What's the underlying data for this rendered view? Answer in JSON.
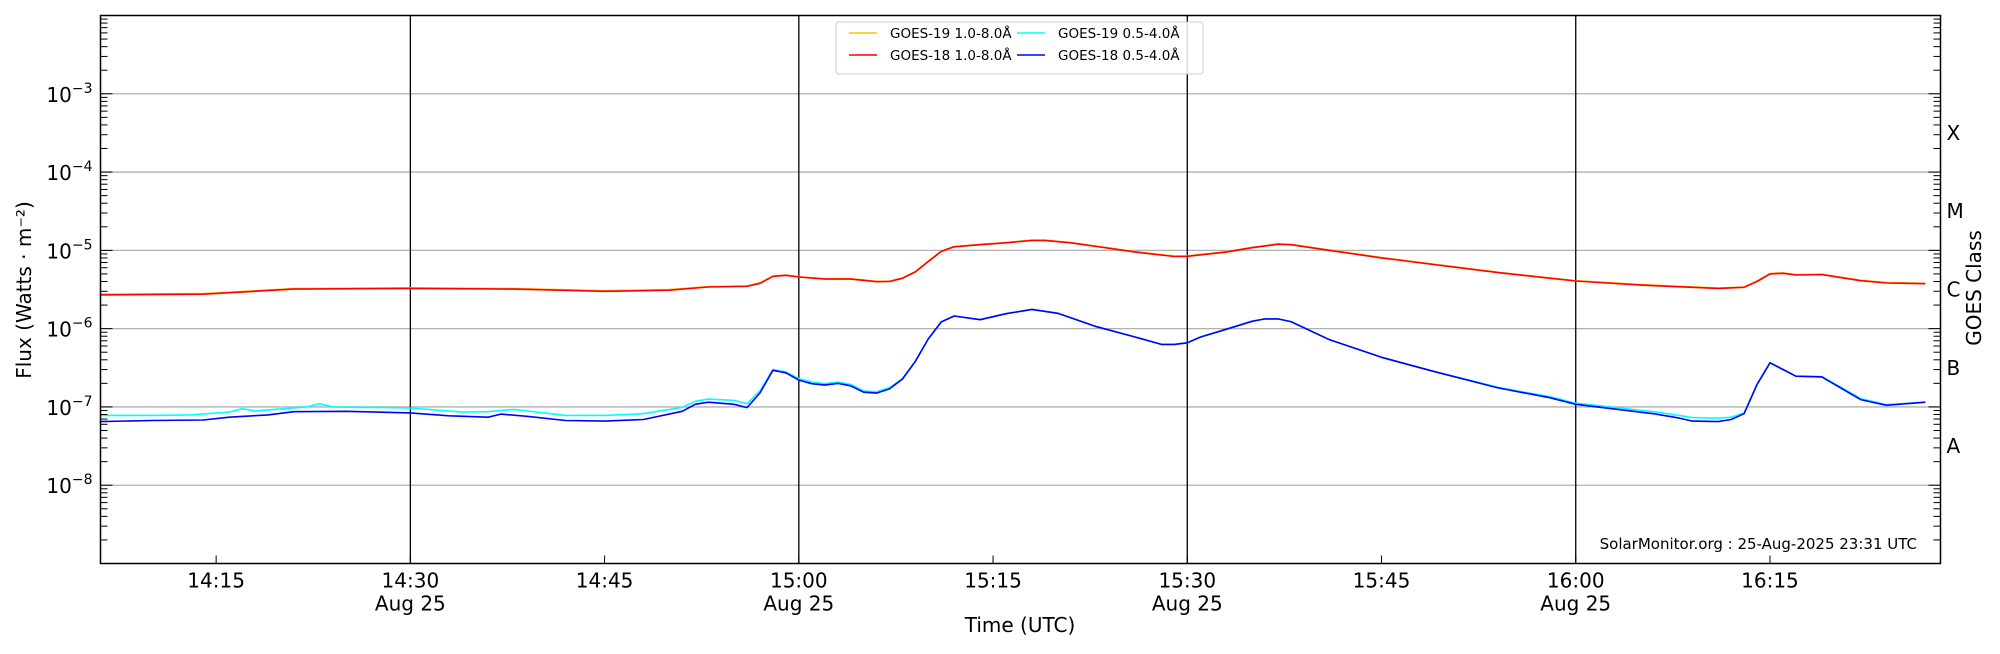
{
  "chart_data": {
    "type": "line",
    "title": "",
    "xlabel": "Time (UTC)",
    "ylabel": "Flux (Watts · m⁻²)",
    "right_ylabel": "GOES Class",
    "xlim": [
      "14:06",
      "16:28"
    ],
    "ylim": [
      1e-09,
      0.01
    ],
    "yscale": "log",
    "grid": "horizontal at decades",
    "legend_placement": "top-center",
    "x_ticks": [
      {
        "time": "14:15",
        "label": "14:15",
        "sublabel": ""
      },
      {
        "time": "14:30",
        "label": "14:30",
        "sublabel": "Aug 25"
      },
      {
        "time": "14:45",
        "label": "14:45",
        "sublabel": ""
      },
      {
        "time": "15:00",
        "label": "15:00",
        "sublabel": "Aug 25"
      },
      {
        "time": "15:15",
        "label": "15:15",
        "sublabel": ""
      },
      {
        "time": "15:30",
        "label": "15:30",
        "sublabel": "Aug 25"
      },
      {
        "time": "15:45",
        "label": "15:45",
        "sublabel": ""
      },
      {
        "time": "16:00",
        "label": "16:00",
        "sublabel": "Aug 25"
      },
      {
        "time": "16:15",
        "label": "16:15",
        "sublabel": ""
      }
    ],
    "day_lines": [
      "14:30",
      "15:00",
      "15:30",
      "16:00"
    ],
    "y_ticks": [
      {
        "value": 1e-08,
        "base": "10",
        "exp": "−8"
      },
      {
        "value": 1e-07,
        "base": "10",
        "exp": "−7"
      },
      {
        "value": 1e-06,
        "base": "10",
        "exp": "−6"
      },
      {
        "value": 1e-05,
        "base": "10",
        "exp": "−5"
      },
      {
        "value": 0.0001,
        "base": "10",
        "exp": "−4"
      },
      {
        "value": 0.001,
        "base": "10",
        "exp": "−3"
      }
    ],
    "goes_classes": [
      {
        "label": "A",
        "value": 3.16e-08
      },
      {
        "label": "B",
        "value": 3.16e-07
      },
      {
        "label": "C",
        "value": 3.16e-06
      },
      {
        "label": "M",
        "value": 3.16e-05
      },
      {
        "label": "X",
        "value": 0.000316
      }
    ],
    "watermark": "SolarMonitor.org : 25-Aug-2025 23:31 UTC",
    "series": [
      {
        "name": "GOES-19 1.0-8.0Å",
        "color": "#ffc000",
        "points": [
          [
            "14:06",
            2.75e-06
          ],
          [
            "14:14",
            2.8e-06
          ],
          [
            "14:21",
            3.25e-06
          ],
          [
            "14:30",
            3.32e-06
          ],
          [
            "14:38",
            3.25e-06
          ],
          [
            "14:45",
            3.05e-06
          ],
          [
            "14:50",
            3.15e-06
          ],
          [
            "14:53",
            3.45e-06
          ],
          [
            "14:56",
            3.5e-06
          ],
          [
            "14:57",
            3.85e-06
          ],
          [
            "14:58",
            4.7e-06
          ],
          [
            "14:59",
            4.85e-06
          ],
          [
            "15:00",
            4.6e-06
          ],
          [
            "15:02",
            4.35e-06
          ],
          [
            "15:04",
            4.35e-06
          ],
          [
            "15:06",
            4.02e-06
          ],
          [
            "15:07",
            4.05e-06
          ],
          [
            "15:08",
            4.45e-06
          ],
          [
            "15:09",
            5.35e-06
          ],
          [
            "15:10",
            7.3e-06
          ],
          [
            "15:11",
            9.8e-06
          ],
          [
            "15:12",
            1.12e-05
          ],
          [
            "15:14",
            1.19e-05
          ],
          [
            "15:16",
            1.26e-05
          ],
          [
            "15:18",
            1.35e-05
          ],
          [
            "15:19",
            1.35e-05
          ],
          [
            "15:21",
            1.26e-05
          ],
          [
            "15:23",
            1.13e-05
          ],
          [
            "15:26",
            9.6e-06
          ],
          [
            "15:29",
            8.45e-06
          ],
          [
            "15:30",
            8.5e-06
          ],
          [
            "15:33",
            9.6e-06
          ],
          [
            "15:35",
            1.09e-05
          ],
          [
            "15:37",
            1.21e-05
          ],
          [
            "15:38",
            1.19e-05
          ],
          [
            "15:41",
            1.01e-05
          ],
          [
            "15:45",
            8.1e-06
          ],
          [
            "15:49",
            6.7e-06
          ],
          [
            "15:54",
            5.25e-06
          ],
          [
            "16:00",
            4.1e-06
          ],
          [
            "16:05",
            3.65e-06
          ],
          [
            "16:11",
            3.3e-06
          ],
          [
            "16:13",
            3.4e-06
          ],
          [
            "16:14",
            4.05e-06
          ],
          [
            "16:15",
            5.05e-06
          ],
          [
            "16:16",
            5.15e-06
          ],
          [
            "16:17",
            4.9e-06
          ],
          [
            "16:19",
            4.95e-06
          ],
          [
            "16:22",
            4.15e-06
          ],
          [
            "16:24",
            3.87e-06
          ],
          [
            "16:27",
            3.8e-06
          ]
        ]
      },
      {
        "name": "GOES-18 1.0-8.0Å",
        "color": "#ff0000",
        "points": [
          [
            "14:06",
            2.7e-06
          ],
          [
            "14:14",
            2.75e-06
          ],
          [
            "14:21",
            3.2e-06
          ],
          [
            "14:30",
            3.27e-06
          ],
          [
            "14:38",
            3.2e-06
          ],
          [
            "14:45",
            3e-06
          ],
          [
            "14:50",
            3.1e-06
          ],
          [
            "14:53",
            3.4e-06
          ],
          [
            "14:56",
            3.47e-06
          ],
          [
            "14:57",
            3.8e-06
          ],
          [
            "14:58",
            4.65e-06
          ],
          [
            "14:59",
            4.8e-06
          ],
          [
            "15:00",
            4.57e-06
          ],
          [
            "15:02",
            4.3e-06
          ],
          [
            "15:04",
            4.3e-06
          ],
          [
            "15:06",
            3.98e-06
          ],
          [
            "15:07",
            4e-06
          ],
          [
            "15:08",
            4.4e-06
          ],
          [
            "15:09",
            5.3e-06
          ],
          [
            "15:10",
            7.2e-06
          ],
          [
            "15:11",
            9.7e-06
          ],
          [
            "15:12",
            1.11e-05
          ],
          [
            "15:14",
            1.18e-05
          ],
          [
            "15:16",
            1.25e-05
          ],
          [
            "15:18",
            1.34e-05
          ],
          [
            "15:19",
            1.34e-05
          ],
          [
            "15:21",
            1.25e-05
          ],
          [
            "15:23",
            1.12e-05
          ],
          [
            "15:26",
            9.5e-06
          ],
          [
            "15:29",
            8.35e-06
          ],
          [
            "15:30",
            8.4e-06
          ],
          [
            "15:33",
            9.5e-06
          ],
          [
            "15:35",
            1.08e-05
          ],
          [
            "15:37",
            1.2e-05
          ],
          [
            "15:38",
            1.18e-05
          ],
          [
            "15:41",
            1e-05
          ],
          [
            "15:45",
            8e-06
          ],
          [
            "15:49",
            6.6e-06
          ],
          [
            "15:54",
            5.2e-06
          ],
          [
            "16:00",
            4.06e-06
          ],
          [
            "16:05",
            3.6e-06
          ],
          [
            "16:11",
            3.27e-06
          ],
          [
            "16:13",
            3.37e-06
          ],
          [
            "16:14",
            4e-06
          ],
          [
            "16:15",
            5e-06
          ],
          [
            "16:16",
            5.1e-06
          ],
          [
            "16:17",
            4.84e-06
          ],
          [
            "16:19",
            4.9e-06
          ],
          [
            "16:22",
            4.1e-06
          ],
          [
            "16:24",
            3.83e-06
          ],
          [
            "16:27",
            3.75e-06
          ]
        ]
      },
      {
        "name": "GOES-19 0.5-4.0Å",
        "color": "#00ffff",
        "points": [
          [
            "14:06",
            7.8e-08
          ],
          [
            "14:10",
            7.8e-08
          ],
          [
            "14:13",
            7.9e-08
          ],
          [
            "14:16",
            8.6e-08
          ],
          [
            "14:17",
            9.5e-08
          ],
          [
            "14:18",
            8.9e-08
          ],
          [
            "14:22",
            1e-07
          ],
          [
            "14:23",
            1.1e-07
          ],
          [
            "14:24",
            1e-07
          ],
          [
            "14:28",
            9.8e-08
          ],
          [
            "14:30",
            9.7e-08
          ],
          [
            "14:34",
            8.6e-08
          ],
          [
            "14:36",
            8.7e-08
          ],
          [
            "14:38",
            9.3e-08
          ],
          [
            "14:42",
            7.8e-08
          ],
          [
            "14:45",
            7.8e-08
          ],
          [
            "14:48",
            8.2e-08
          ],
          [
            "14:51",
            9.9e-08
          ],
          [
            "14:52",
            1.18e-07
          ],
          [
            "14:53",
            1.26e-07
          ],
          [
            "14:55",
            1.21e-07
          ],
          [
            "14:56",
            1.1e-07
          ],
          [
            "14:57",
            1.6e-07
          ],
          [
            "14:58",
            3e-07
          ],
          [
            "14:59",
            2.8e-07
          ],
          [
            "15:00",
            2.3e-07
          ],
          [
            "15:01",
            2.08e-07
          ],
          [
            "15:02",
            1.98e-07
          ],
          [
            "15:03",
            2.08e-07
          ],
          [
            "15:04",
            1.94e-07
          ],
          [
            "15:05",
            1.6e-07
          ],
          [
            "15:06",
            1.56e-07
          ],
          [
            "15:07",
            1.76e-07
          ],
          [
            "15:08",
            2.3e-07
          ],
          [
            "15:09",
            3.85e-07
          ],
          [
            "15:10",
            7.4e-07
          ],
          [
            "15:11",
            1.22e-06
          ],
          [
            "15:12",
            1.45e-06
          ],
          [
            "15:14",
            1.3e-06
          ],
          [
            "15:16",
            1.55e-06
          ],
          [
            "15:18",
            1.76e-06
          ],
          [
            "15:20",
            1.57e-06
          ],
          [
            "15:23",
            1.06e-06
          ],
          [
            "15:26",
            7.8e-07
          ],
          [
            "15:28",
            6.3e-07
          ],
          [
            "15:29",
            6.3e-07
          ],
          [
            "15:30",
            6.6e-07
          ],
          [
            "15:31",
            7.8e-07
          ],
          [
            "15:33",
            9.8e-07
          ],
          [
            "15:35",
            1.24e-06
          ],
          [
            "15:36",
            1.33e-06
          ],
          [
            "15:37",
            1.33e-06
          ],
          [
            "15:38",
            1.23e-06
          ],
          [
            "15:41",
            7.2e-07
          ],
          [
            "15:45",
            4.3e-07
          ],
          [
            "15:49",
            2.85e-07
          ],
          [
            "15:54",
            1.78e-07
          ],
          [
            "15:58",
            1.35e-07
          ],
          [
            "16:00",
            1.12e-07
          ],
          [
            "16:06",
            8.7e-08
          ],
          [
            "16:08",
            7.8e-08
          ],
          [
            "16:09",
            7.3e-08
          ],
          [
            "16:11",
            7.2e-08
          ],
          [
            "16:12",
            7.4e-08
          ],
          [
            "16:13",
            8.4e-08
          ],
          [
            "16:14",
            1.95e-07
          ],
          [
            "16:15",
            3.66e-07
          ],
          [
            "16:17",
            2.47e-07
          ],
          [
            "16:19",
            2.45e-07
          ],
          [
            "16:22",
            1.28e-07
          ],
          [
            "16:24",
            1.07e-07
          ],
          [
            "16:27",
            1.15e-07
          ]
        ]
      },
      {
        "name": "GOES-18 0.5-4.0Å",
        "color": "#0000ff",
        "points": [
          [
            "14:06",
            6.5e-08
          ],
          [
            "14:10",
            6.7e-08
          ],
          [
            "14:14",
            6.8e-08
          ],
          [
            "14:16",
            7.4e-08
          ],
          [
            "14:19",
            7.9e-08
          ],
          [
            "14:21",
            8.7e-08
          ],
          [
            "14:25",
            8.8e-08
          ],
          [
            "14:30",
            8.4e-08
          ],
          [
            "14:33",
            7.7e-08
          ],
          [
            "14:36",
            7.4e-08
          ],
          [
            "14:37",
            8.1e-08
          ],
          [
            "14:39",
            7.6e-08
          ],
          [
            "14:42",
            6.7e-08
          ],
          [
            "14:45",
            6.6e-08
          ],
          [
            "14:48",
            6.9e-08
          ],
          [
            "14:51",
            8.8e-08
          ],
          [
            "14:52",
            1.08e-07
          ],
          [
            "14:53",
            1.15e-07
          ],
          [
            "14:55",
            1.08e-07
          ],
          [
            "14:56",
            9.8e-08
          ],
          [
            "14:57",
            1.51e-07
          ],
          [
            "14:58",
            2.94e-07
          ],
          [
            "14:59",
            2.73e-07
          ],
          [
            "15:00",
            2.2e-07
          ],
          [
            "15:01",
            1.98e-07
          ],
          [
            "15:02",
            1.9e-07
          ],
          [
            "15:03",
            2e-07
          ],
          [
            "15:04",
            1.86e-07
          ],
          [
            "15:05",
            1.54e-07
          ],
          [
            "15:06",
            1.5e-07
          ],
          [
            "15:07",
            1.7e-07
          ],
          [
            "15:08",
            2.27e-07
          ],
          [
            "15:09",
            3.83e-07
          ],
          [
            "15:10",
            7.4e-07
          ],
          [
            "15:11",
            1.22e-06
          ],
          [
            "15:12",
            1.45e-06
          ],
          [
            "15:14",
            1.3e-06
          ],
          [
            "15:16",
            1.55e-06
          ],
          [
            "15:18",
            1.76e-06
          ],
          [
            "15:20",
            1.57e-06
          ],
          [
            "15:23",
            1.06e-06
          ],
          [
            "15:26",
            7.8e-07
          ],
          [
            "15:28",
            6.3e-07
          ],
          [
            "15:29",
            6.3e-07
          ],
          [
            "15:30",
            6.6e-07
          ],
          [
            "15:31",
            7.8e-07
          ],
          [
            "15:33",
            9.8e-07
          ],
          [
            "15:35",
            1.24e-06
          ],
          [
            "15:36",
            1.33e-06
          ],
          [
            "15:37",
            1.33e-06
          ],
          [
            "15:38",
            1.23e-06
          ],
          [
            "15:41",
            7.2e-07
          ],
          [
            "15:45",
            4.3e-07
          ],
          [
            "15:49",
            2.85e-07
          ],
          [
            "15:54",
            1.75e-07
          ],
          [
            "15:58",
            1.31e-07
          ],
          [
            "16:00",
            1.08e-07
          ],
          [
            "16:06",
            8.2e-08
          ],
          [
            "16:08",
            7.2e-08
          ],
          [
            "16:09",
            6.6e-08
          ],
          [
            "16:11",
            6.5e-08
          ],
          [
            "16:12",
            6.9e-08
          ],
          [
            "16:13",
            8.2e-08
          ],
          [
            "16:14",
            1.93e-07
          ],
          [
            "16:15",
            3.66e-07
          ],
          [
            "16:17",
            2.47e-07
          ],
          [
            "16:19",
            2.42e-07
          ],
          [
            "16:22",
            1.24e-07
          ],
          [
            "16:24",
            1.05e-07
          ],
          [
            "16:27",
            1.15e-07
          ]
        ]
      }
    ]
  }
}
